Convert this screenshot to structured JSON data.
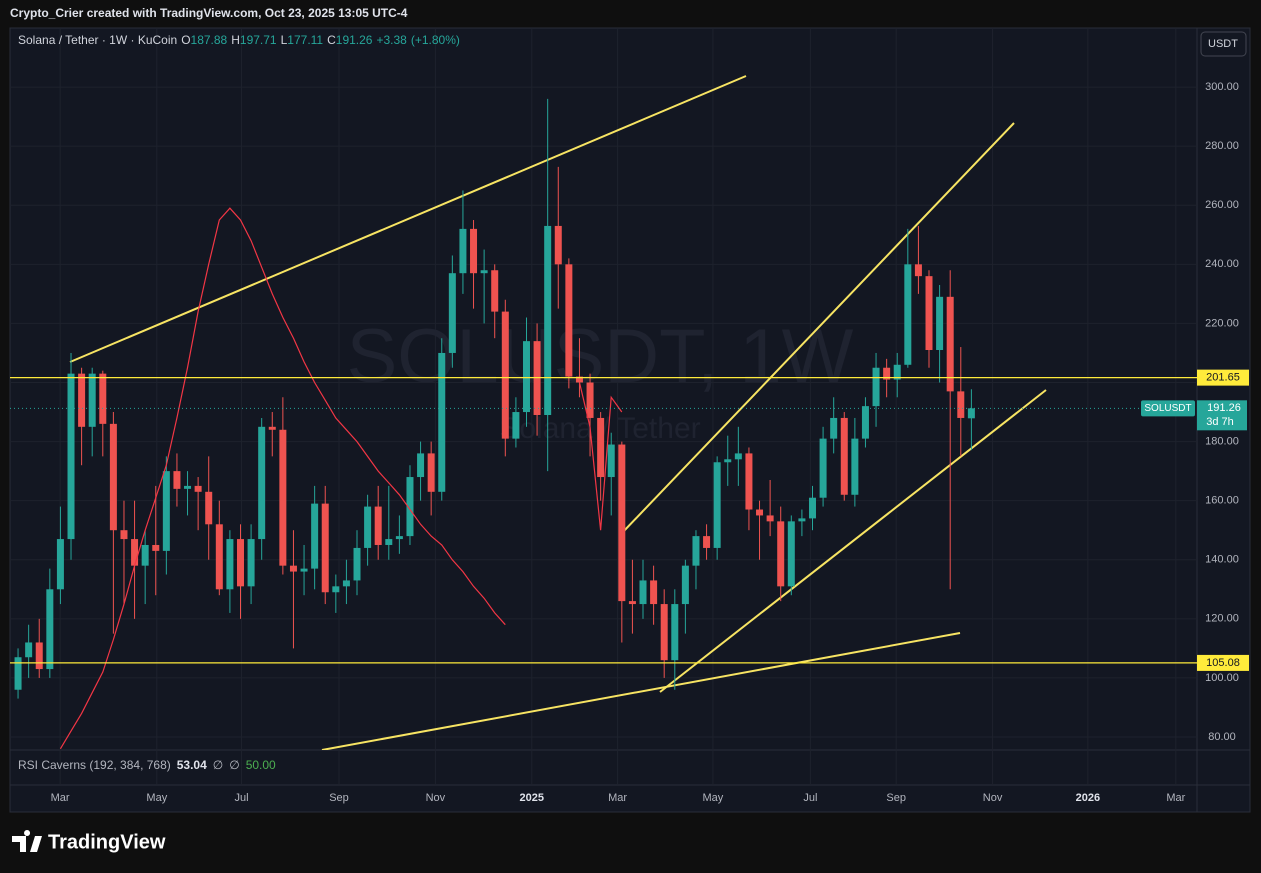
{
  "top": {
    "credit": "Crypto_Crier created with TradingView.com, Oct 23, 2025 13:05 UTC-4"
  },
  "footer": {
    "logo": "TradingView"
  },
  "chart_data": {
    "type": "candlestick",
    "currency": "USDT",
    "symbol_title": "Solana / Tether · 1W · KuCoin",
    "ohlc_labels": [
      "O",
      "H",
      "L",
      "C"
    ],
    "change": "+3.38",
    "change_pct": "(+1.80%)",
    "watermark": "SOLUSDT, 1W",
    "watermark_sub": "Solana / Tether",
    "last_symbol": "SOLUSDT",
    "countdown": "3d 7h",
    "up_color": "#26a69a",
    "down_color": "#ef5350",
    "open": [
      96,
      107,
      112,
      103,
      130,
      147,
      203,
      185,
      203,
      186,
      150,
      147,
      138,
      145,
      143,
      170,
      164,
      165,
      163,
      152,
      130,
      147,
      131,
      147,
      185,
      184,
      138,
      136,
      137,
      159,
      129,
      131,
      133,
      144,
      158,
      145,
      147,
      148,
      168,
      176,
      163,
      210,
      237,
      252,
      237,
      238,
      224,
      181,
      190,
      214,
      189,
      253,
      240,
      202,
      200,
      188,
      168,
      179,
      126,
      125,
      133,
      125,
      106,
      125,
      138,
      148,
      144,
      173,
      174,
      176,
      157,
      155,
      153,
      131,
      153,
      154,
      161,
      181,
      188,
      162,
      181,
      192,
      205,
      201,
      206,
      240,
      236,
      211,
      229,
      197,
      187.88
    ],
    "high": [
      110,
      118,
      120,
      137,
      158,
      210,
      205,
      205,
      204,
      190,
      160,
      160,
      150,
      165,
      175,
      176,
      170,
      168,
      175,
      160,
      150,
      152,
      152,
      188,
      190,
      195,
      150,
      145,
      165,
      165,
      135,
      140,
      150,
      162,
      165,
      165,
      155,
      172,
      180,
      180,
      215,
      243,
      265,
      255,
      245,
      240,
      228,
      195,
      222,
      220,
      296,
      273,
      242,
      215,
      203,
      190,
      183,
      180,
      140,
      140,
      138,
      130,
      130,
      140,
      150,
      152,
      175,
      182,
      185,
      178,
      160,
      167,
      158,
      155,
      157,
      165,
      185,
      195,
      190,
      188,
      195,
      210,
      208,
      210,
      252,
      253,
      238,
      233,
      238,
      212,
      197.71
    ],
    "low": [
      93,
      100,
      100,
      100,
      125,
      140,
      172,
      175,
      175,
      115,
      125,
      120,
      125,
      128,
      135,
      158,
      155,
      150,
      140,
      128,
      122,
      120,
      125,
      140,
      175,
      135,
      110,
      128,
      130,
      125,
      122,
      125,
      128,
      138,
      140,
      140,
      142,
      145,
      160,
      155,
      160,
      205,
      230,
      225,
      220,
      215,
      175,
      178,
      185,
      182,
      170,
      225,
      198,
      195,
      175,
      160,
      155,
      112,
      115,
      120,
      118,
      100,
      96,
      115,
      130,
      140,
      140,
      165,
      165,
      150,
      140,
      148,
      126,
      128,
      148,
      150,
      158,
      176,
      160,
      158,
      178,
      185,
      195,
      195,
      205,
      230,
      205,
      200,
      130,
      175,
      177.11
    ],
    "close": [
      107,
      112,
      103,
      130,
      147,
      203,
      185,
      203,
      186,
      150,
      147,
      138,
      145,
      143,
      170,
      164,
      165,
      163,
      152,
      130,
      147,
      131,
      147,
      185,
      184,
      138,
      136,
      137,
      159,
      129,
      131,
      133,
      144,
      158,
      145,
      147,
      148,
      168,
      176,
      163,
      210,
      237,
      252,
      237,
      238,
      224,
      181,
      190,
      214,
      189,
      253,
      240,
      202,
      200,
      188,
      168,
      179,
      126,
      125,
      133,
      125,
      106,
      125,
      138,
      148,
      144,
      173,
      174,
      176,
      157,
      155,
      153,
      131,
      153,
      154,
      161,
      181,
      188,
      162,
      181,
      192,
      205,
      201,
      206,
      240,
      236,
      211,
      229,
      197,
      188,
      191.26
    ],
    "xlim": [
      -0.76,
      111.3
    ],
    "xticks": [
      {
        "value": 3.97,
        "label": "Mar"
      },
      {
        "value": 13.1,
        "label": "May"
      },
      {
        "value": 21.1,
        "label": "Jul"
      },
      {
        "value": 30.3,
        "label": "Sep"
      },
      {
        "value": 39.4,
        "label": "Nov"
      },
      {
        "value": 48.5,
        "label": "2025"
      },
      {
        "value": 56.6,
        "label": "Mar"
      },
      {
        "value": 65.6,
        "label": "May"
      },
      {
        "value": 74.8,
        "label": "Jul"
      },
      {
        "value": 82.9,
        "label": "Sep"
      },
      {
        "value": 92.0,
        "label": "Nov"
      },
      {
        "value": 101.0,
        "label": "2026"
      },
      {
        "value": 109.3,
        "label": "Mar"
      }
    ],
    "ylim": [
      75.6,
      320
    ],
    "yticks": [
      {
        "value": 80,
        "label": "80.00"
      },
      {
        "value": 100,
        "label": "100.00"
      },
      {
        "value": 120,
        "label": "120.00"
      },
      {
        "value": 140,
        "label": "140.00"
      },
      {
        "value": 160,
        "label": "160.00"
      },
      {
        "value": 180,
        "label": "180.00"
      },
      {
        "value": 200,
        "label": "200.00"
      },
      {
        "value": 220,
        "label": "220.00"
      },
      {
        "value": 240,
        "label": "240.00"
      },
      {
        "value": 260,
        "label": "260.00"
      },
      {
        "value": 280,
        "label": "280.00"
      },
      {
        "value": 300,
        "label": "300.00"
      }
    ],
    "grid": true,
    "hlines": [
      201.65,
      105.08
    ],
    "hline_color": "#ffeb3b",
    "indicator": {
      "name": "RSI Caverns (192, 384, 768)",
      "value": 53.04,
      "extra": [
        "∅",
        "∅"
      ],
      "level": "50.00",
      "color": "#f23645",
      "values": [
        null,
        null,
        null,
        null,
        76,
        82,
        88,
        95,
        102,
        113,
        125,
        138,
        150,
        161,
        172,
        188,
        205,
        224,
        240,
        255,
        259,
        255,
        248,
        239,
        230,
        222,
        215,
        207,
        200,
        194,
        188,
        184,
        180,
        175,
        170,
        166,
        162,
        157,
        152,
        148,
        145,
        140,
        136,
        131,
        127,
        122,
        118,
        null,
        null,
        null,
        null,
        null,
        null,
        200,
        185,
        150,
        195,
        190,
        null,
        null,
        null,
        null,
        null,
        null,
        null,
        null,
        null,
        null,
        null,
        null,
        null,
        null,
        null,
        null,
        null,
        null,
        null,
        null,
        null,
        null,
        null,
        null,
        null,
        null,
        null,
        null,
        null,
        null,
        null,
        null,
        null
      ]
    }
  }
}
